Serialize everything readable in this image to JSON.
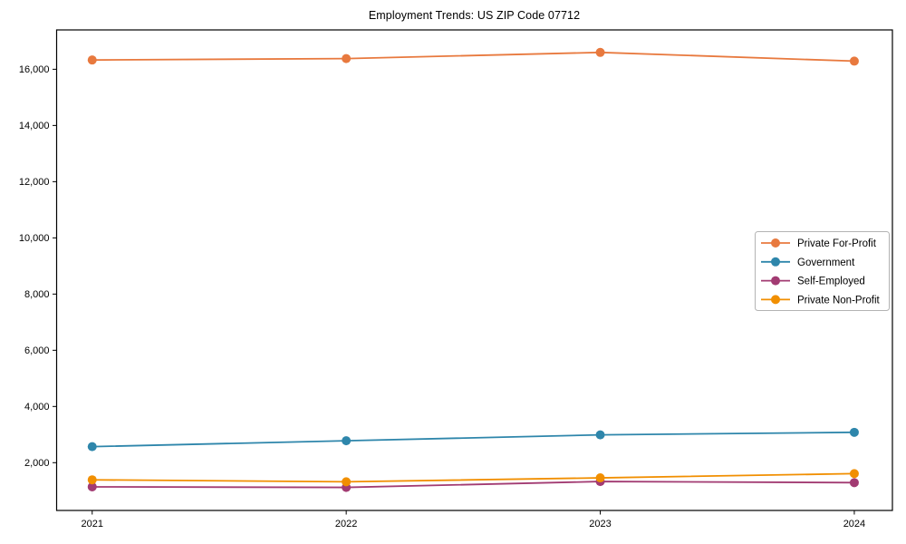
{
  "page": {
    "background_color": "#ffffff"
  },
  "chart_data": {
    "type": "line",
    "title": "Employment Trends: US ZIP Code 07712",
    "xlabel": "",
    "ylabel": "",
    "x": [
      2021,
      2022,
      2023,
      2024
    ],
    "x_tick_labels": [
      "2021",
      "2022",
      "2023",
      "2024"
    ],
    "series": [
      {
        "name": "Private For-Profit",
        "color": "#E8793E",
        "values": [
          16330,
          16380,
          16600,
          16290
        ]
      },
      {
        "name": "Government",
        "color": "#2E86AB",
        "values": [
          2570,
          2780,
          2990,
          3080
        ]
      },
      {
        "name": "Self-Employed",
        "color": "#A23B72",
        "values": [
          1140,
          1120,
          1330,
          1290
        ]
      },
      {
        "name": "Private Non-Profit",
        "color": "#F18F01",
        "values": [
          1390,
          1320,
          1460,
          1610
        ]
      }
    ],
    "xlim": [
      2020.86,
      2024.15
    ],
    "ylim": [
      300,
      17400
    ],
    "yticks": [
      2000,
      4000,
      6000,
      8000,
      10000,
      12000,
      14000,
      16000
    ],
    "ytick_labels": [
      "2,000",
      "4,000",
      "6,000",
      "8,000",
      "10,000",
      "12,000",
      "14,000",
      "16,000"
    ],
    "grid": false,
    "marker": "circle",
    "legend": {
      "position": "center-right",
      "entries": [
        "Private For-Profit",
        "Government",
        "Self-Employed",
        "Private Non-Profit"
      ]
    },
    "style": {
      "spine_color": "#000000",
      "legend_border_color": "#b3b3b3",
      "line_width": 1.8,
      "marker_radius": 5
    }
  }
}
